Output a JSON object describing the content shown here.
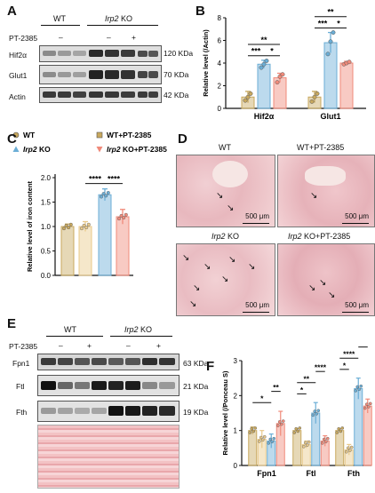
{
  "panel_letters": {
    "a": "A",
    "b": "B",
    "c": "C",
    "d": "D",
    "e": "E",
    "f": "F"
  },
  "panel_A": {
    "group_wt": "WT",
    "group_ko_gene": "Irp2",
    "group_ko_suffix": " KO",
    "treatment_label": "PT-2385",
    "treatment_marks": [
      "–",
      "–",
      "+"
    ],
    "rows": [
      {
        "name": "Hif2α",
        "size": "120 KDa"
      },
      {
        "name": "Glut1",
        "size": "70 KDa"
      },
      {
        "name": "Actin",
        "size": "42 KDa"
      }
    ]
  },
  "panel_B_chart": {
    "type": "bar",
    "ylabel": "Relative level (/Actin)",
    "categories": [
      "Hif2α",
      "Glut1"
    ],
    "ylim": [
      0,
      8
    ],
    "yticks": [
      "0",
      "2",
      "4",
      "6",
      "8"
    ],
    "colors": {
      "wt": "#c8a85e",
      "ko": "#6baed6",
      "ko_pt": "#f08a7a"
    },
    "series": [
      {
        "group": "wt",
        "values": [
          1.0,
          1.0
        ],
        "errors": [
          0.5,
          0.5
        ],
        "points": [
          [
            0.7,
            1.0,
            1.3
          ],
          [
            0.6,
            1.0,
            1.3
          ]
        ]
      },
      {
        "group": "ko",
        "values": [
          3.9,
          5.8
        ],
        "errors": [
          0.35,
          0.9
        ],
        "points": [
          [
            3.6,
            3.9,
            4.2
          ],
          [
            4.8,
            5.9,
            6.7
          ]
        ]
      },
      {
        "group": "ko_pt",
        "values": [
          2.7,
          4.0
        ],
        "errors": [
          0.4,
          0.15
        ],
        "points": [
          [
            2.3,
            2.8,
            3.0
          ],
          [
            3.9,
            4.0,
            4.1
          ]
        ]
      }
    ],
    "significance": [
      {
        "cat": 0,
        "pair": "wt-ko",
        "label": "***"
      },
      {
        "cat": 0,
        "pair": "ko-kopt",
        "label": "*"
      },
      {
        "cat": 0,
        "pair": "wt-kopt",
        "label": "**"
      },
      {
        "cat": 1,
        "pair": "wt-ko",
        "label": "***"
      },
      {
        "cat": 1,
        "pair": "ko-kopt",
        "label": "*"
      },
      {
        "cat": 1,
        "pair": "wt-kopt",
        "label": "**"
      }
    ]
  },
  "panel_C_chart": {
    "type": "bar",
    "ylabel": "Relative level of iron content",
    "legend": [
      {
        "label": "WT",
        "marker": "circle",
        "color": "#c8a85e",
        "italic_part": ""
      },
      {
        "label": "WT+PT-2385",
        "marker": "square",
        "color": "#c8a85e",
        "italic_part": ""
      },
      {
        "label": " KO",
        "marker": "triangle",
        "color": "#6baed6",
        "italic_part": "Irp2"
      },
      {
        "label": " KO+PT-2385",
        "marker": "triangle-down",
        "color": "#f08a7a",
        "italic_part": "Irp2"
      }
    ],
    "ylim": [
      0,
      2.0
    ],
    "yticks": [
      "0.0",
      "0.5",
      "1.0",
      "1.5",
      "2.0"
    ],
    "values": [
      1.0,
      1.0,
      1.65,
      1.2
    ],
    "errors": [
      0.05,
      0.1,
      0.12,
      0.15
    ],
    "colors": [
      "#c8a85e",
      "#e8c98a",
      "#6baed6",
      "#f08a7a"
    ],
    "significance": [
      {
        "label": "****",
        "from": 1,
        "to": 2
      },
      {
        "label": "****",
        "from": 2,
        "to": 3
      }
    ]
  },
  "panel_D": {
    "images": [
      {
        "title": "WT",
        "italic_part": "",
        "scale": "500 μm"
      },
      {
        "title": "WT+PT-2385",
        "italic_part": "",
        "scale": "500 μm"
      },
      {
        "title": " KO",
        "italic_part": "Irp2",
        "scale": "500 μm"
      },
      {
        "title": " KO+PT-2385",
        "italic_part": "Irp2",
        "scale": "500 μm"
      }
    ]
  },
  "panel_E": {
    "group_wt": "WT",
    "group_ko_gene": "Irp2",
    "group_ko_suffix": " KO",
    "treatment_label": "PT-2385",
    "treatment_marks": [
      "–",
      "+",
      "–",
      "+"
    ],
    "rows": [
      {
        "name": "Fpn1",
        "size": "63 KDa"
      },
      {
        "name": "Ftl",
        "size": "21 KDa"
      },
      {
        "name": "Fth",
        "size": "19 KDa"
      }
    ]
  },
  "panel_F_chart": {
    "type": "bar",
    "ylabel": "Relative level (/Ponceau S)",
    "categories": [
      "Fpn1",
      "Ftl",
      "Fth"
    ],
    "ylim": [
      0,
      3
    ],
    "yticks": [
      "0",
      "1",
      "2",
      "3"
    ],
    "colors": [
      "#c8a85e",
      "#e8c98a",
      "#6baed6",
      "#f08a7a"
    ],
    "values": [
      [
        1.0,
        0.75,
        0.7,
        1.2
      ],
      [
        1.0,
        0.6,
        1.5,
        0.7
      ],
      [
        1.0,
        0.45,
        2.2,
        1.7
      ]
    ],
    "errors": [
      [
        0.1,
        0.25,
        0.2,
        0.35
      ],
      [
        0.05,
        0.1,
        0.3,
        0.15
      ],
      [
        0.05,
        0.15,
        0.3,
        0.2
      ]
    ],
    "significance": [
      {
        "cat": 0,
        "from": 0,
        "to": 2,
        "label": "*"
      },
      {
        "cat": 0,
        "from": 2,
        "to": 3,
        "label": "**"
      },
      {
        "cat": 1,
        "from": 0,
        "to": 1,
        "label": "*"
      },
      {
        "cat": 1,
        "from": 0,
        "to": 2,
        "label": "**"
      },
      {
        "cat": 1,
        "from": 2,
        "to": 3,
        "label": "****"
      },
      {
        "cat": 2,
        "from": 0,
        "to": 1,
        "label": "*"
      },
      {
        "cat": 2,
        "from": 0,
        "to": 2,
        "label": "****"
      },
      {
        "cat": 2,
        "from": 2,
        "to": 3,
        "label": "*"
      },
      {
        "cat": 2,
        "from": 0,
        "to": 3,
        "label": "****"
      }
    ]
  }
}
